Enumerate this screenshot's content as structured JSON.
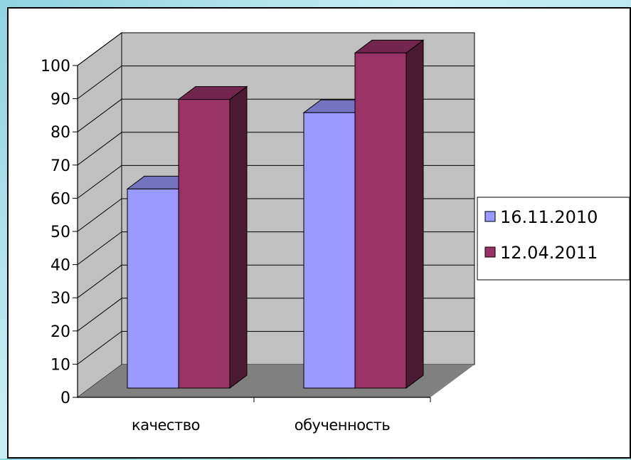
{
  "chart_data": {
    "type": "bar",
    "three_d": true,
    "categories": [
      "качество",
      "обученность"
    ],
    "series": [
      {
        "name": "16.11.2010",
        "values": [
          60,
          83
        ],
        "color": "#9999ff"
      },
      {
        "name": "12.04.2011",
        "values": [
          87,
          101
        ],
        "color": "#993366"
      }
    ],
    "title": "",
    "xlabel": "",
    "ylabel": "",
    "ylim": [
      0,
      100
    ],
    "yticks": [
      0,
      10,
      20,
      30,
      40,
      50,
      60,
      70,
      80,
      90,
      100
    ],
    "grid": true,
    "legend_position": "right",
    "wall_color": "#c0c0c0",
    "floor_color": "#808080"
  }
}
